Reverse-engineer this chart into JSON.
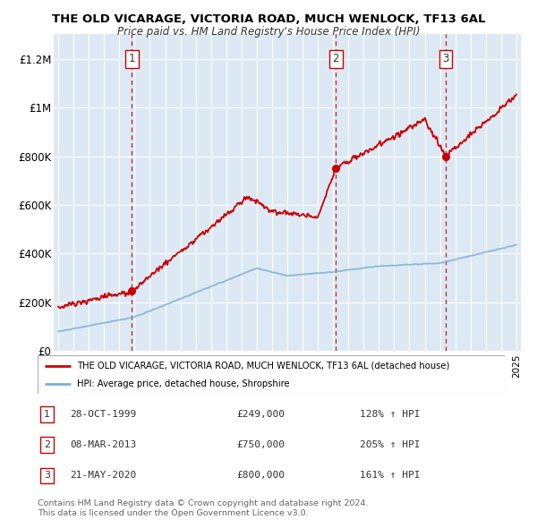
{
  "title": "THE OLD VICARAGE, VICTORIA ROAD, MUCH WENLOCK, TF13 6AL",
  "subtitle": "Price paid vs. HM Land Registry's House Price Index (HPI)",
  "bg_color": "#dce9f5",
  "red_line_color": "#cc0000",
  "blue_line_color": "#7bafd4",
  "sale_marker_color": "#cc0000",
  "vline_color": "#cc0000",
  "ylim": [
    0,
    1300000
  ],
  "yticks": [
    0,
    200000,
    400000,
    600000,
    800000,
    1000000,
    1200000
  ],
  "ytick_labels": [
    "£0",
    "£200K",
    "£400K",
    "£600K",
    "£800K",
    "£1M",
    "£1.2M"
  ],
  "sales": [
    {
      "num": 1,
      "date_label": "28-OCT-1999",
      "year": 1999.82,
      "price": 249000,
      "hpi_pct": "128%"
    },
    {
      "num": 2,
      "date_label": "08-MAR-2013",
      "year": 2013.18,
      "price": 750000,
      "hpi_pct": "205%"
    },
    {
      "num": 3,
      "date_label": "21-MAY-2020",
      "year": 2020.38,
      "price": 800000,
      "hpi_pct": "161%"
    }
  ],
  "legend_property_label": "THE OLD VICARAGE, VICTORIA ROAD, MUCH WENLOCK, TF13 6AL (detached house)",
  "legend_hpi_label": "HPI: Average price, detached house, Shropshire",
  "table_rows": [
    [
      "1",
      "28-OCT-1999",
      "£249,000",
      "128% ↑ HPI"
    ],
    [
      "2",
      "08-MAR-2013",
      "£750,000",
      "205% ↑ HPI"
    ],
    [
      "3",
      "21-MAY-2020",
      "£800,000",
      "161% ↑ HPI"
    ]
  ],
  "footer_line1": "Contains HM Land Registry data © Crown copyright and database right 2024.",
  "footer_line2": "This data is licensed under the Open Government Licence v3.0."
}
